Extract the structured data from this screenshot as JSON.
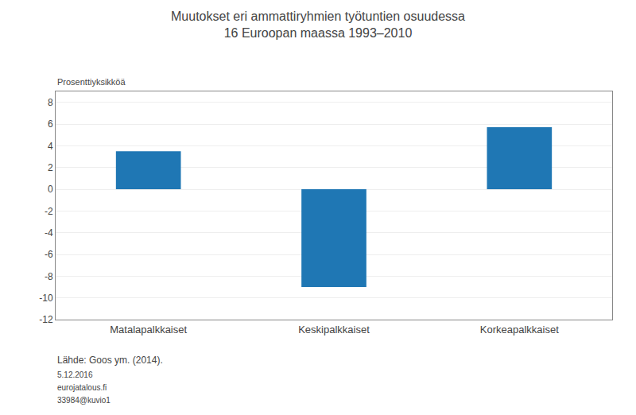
{
  "chart_data": {
    "type": "bar",
    "title": "Muutokset eri ammattiryhmien työtuntien osuudessa",
    "subtitle": "16 Euroopan maassa 1993–2010",
    "ylabel": "Prosenttiyksikköä",
    "categories": [
      "Matalapalkkaiset",
      "Keskipalkkaiset",
      "Korkeapalkkaiset"
    ],
    "values": [
      3.5,
      -9.0,
      5.7
    ],
    "ylim": [
      -12,
      9
    ],
    "yticks": [
      -12,
      -10,
      -8,
      -6,
      -4,
      -2,
      0,
      2,
      4,
      6,
      8
    ],
    "grid": true,
    "annotations": [
      "Lähde: Goos ym. (2014).",
      "5.12.2016",
      "eurojatalous.fi",
      "33984@kuvio1"
    ]
  }
}
